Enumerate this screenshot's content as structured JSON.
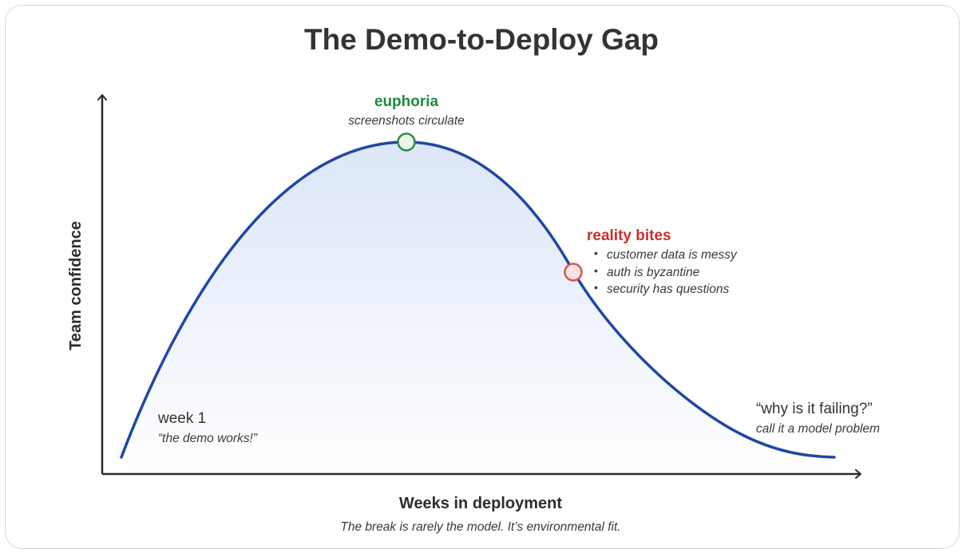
{
  "title": "The Demo-to-Deploy Gap",
  "axes": {
    "x_label": "Weeks in deployment",
    "y_label": "Team confidence",
    "caption": "The break is rarely the model. It’s environmental fit."
  },
  "annotations": {
    "start": {
      "heading": "week 1",
      "subtext": "“the demo works!”"
    },
    "peak": {
      "heading": "euphoria",
      "subtext": "screenshots circulate"
    },
    "decline": {
      "heading": "reality bites",
      "bullets": [
        "customer data is messy",
        "auth is byzantine",
        "security has questions"
      ]
    },
    "end": {
      "heading": "“why is it failing?”",
      "subtext": "call it a model problem"
    }
  },
  "colors": {
    "curve": "#1f47a3",
    "fill_top": "#dfe8f8",
    "peak_marker_stroke": "#2e8b45",
    "peak_marker_fill": "#eaf6ec",
    "decline_marker_stroke": "#d9534f",
    "decline_marker_fill": "#fbe3e1",
    "axis": "#2b2b2b",
    "heading_green": "#1e8a3c",
    "heading_red": "#c8302c"
  }
}
